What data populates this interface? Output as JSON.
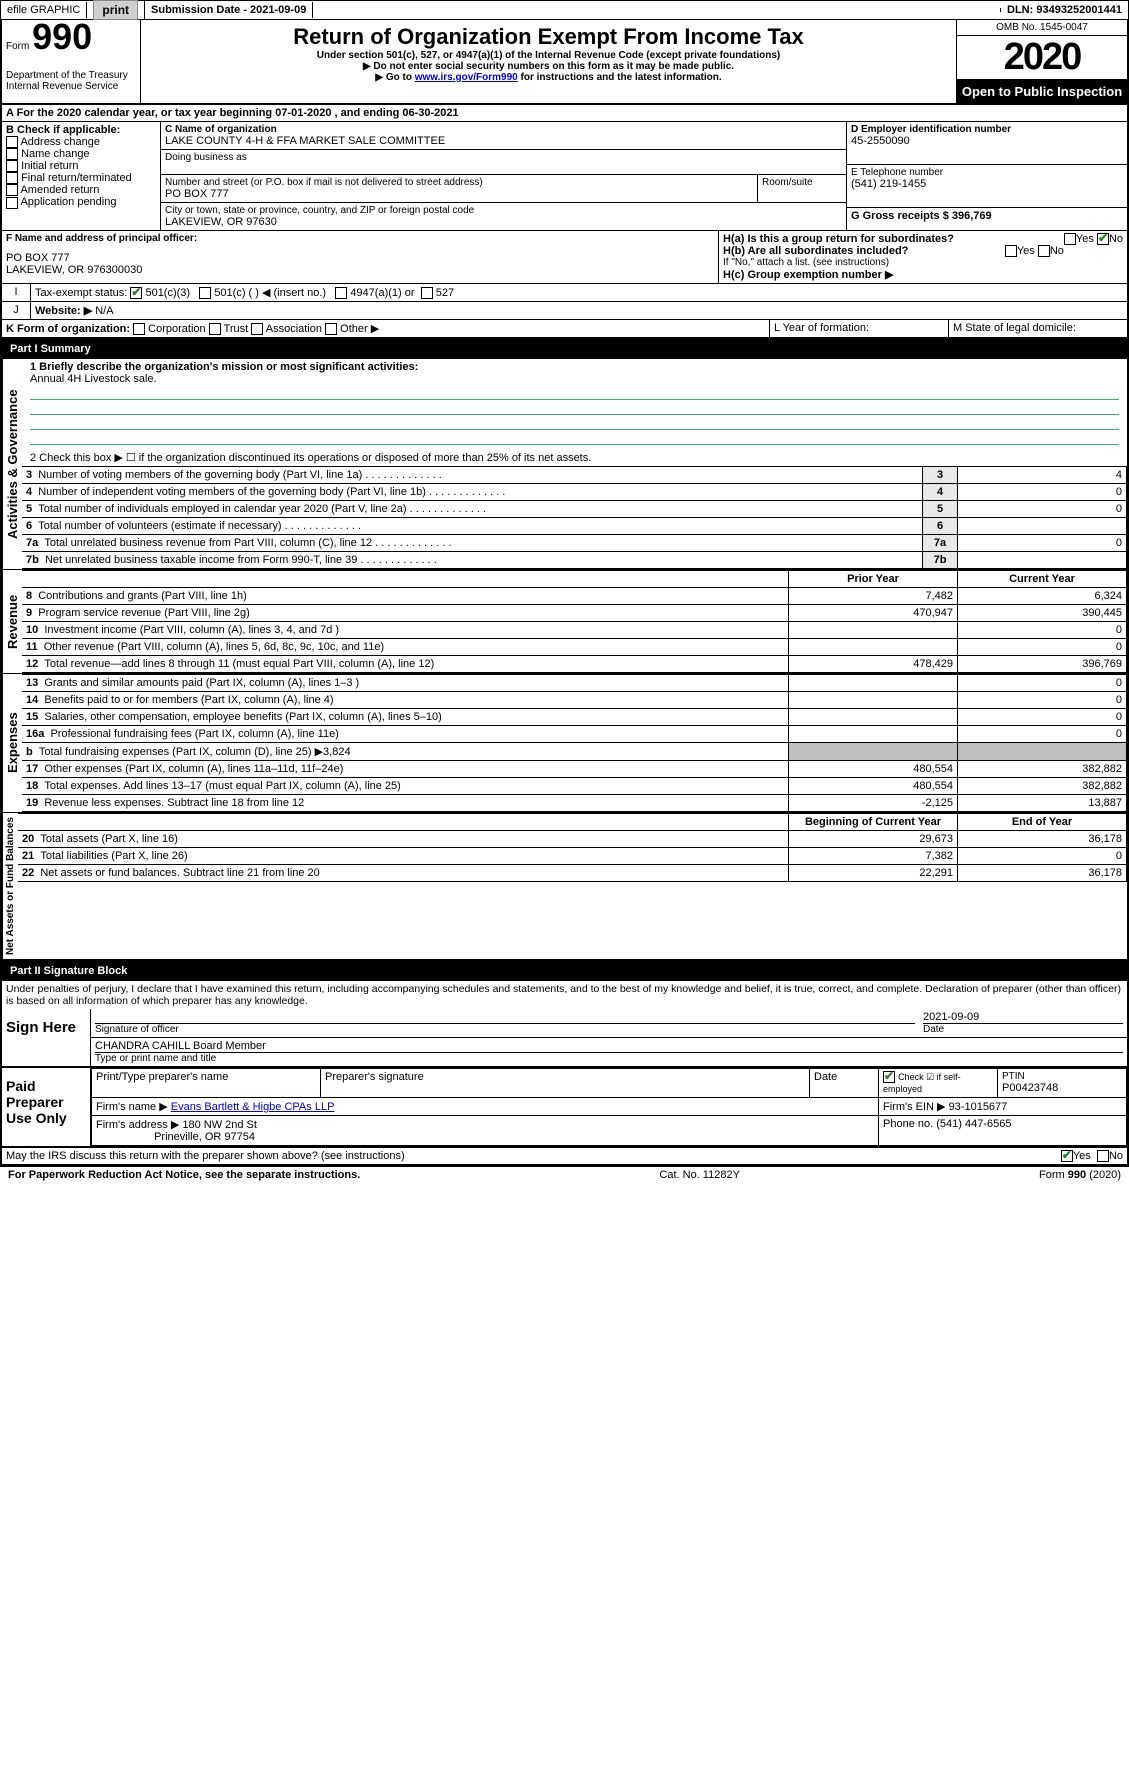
{
  "top": {
    "efile": "efile GRAPHIC",
    "print": "print",
    "sub_label": "Submission Date - 2021-09-09",
    "dln": "DLN: 93493252001441"
  },
  "header": {
    "form_label": "Form",
    "form_number": "990",
    "dept": "Department of the Treasury",
    "irs": "Internal Revenue Service",
    "title": "Return of Organization Exempt From Income Tax",
    "subtitle": "Under section 501(c), 527, or 4947(a)(1) of the Internal Revenue Code (except private foundations)",
    "note1": "▶ Do not enter social security numbers on this form as it may be made public.",
    "note2_pre": "▶ Go to ",
    "note2_link": "www.irs.gov/Form990",
    "note2_post": " for instructions and the latest information.",
    "omb": "OMB No. 1545-0047",
    "year": "2020",
    "open": "Open to Public Inspection"
  },
  "sectionA": {
    "a_line": "A For the 2020 calendar year, or tax year beginning 07-01-2020  , and ending 06-30-2021",
    "b_label": "B Check if applicable:",
    "b_opts": [
      "Address change",
      "Name change",
      "Initial return",
      "Final return/terminated",
      "Amended return",
      "Application pending"
    ],
    "c_label": "C Name of organization",
    "c_name": "LAKE COUNTY 4-H & FFA MARKET SALE COMMITTEE",
    "dba_label": "Doing business as",
    "addr_label": "Number and street (or P.O. box if mail is not delivered to street address)",
    "addr": "PO BOX 777",
    "room_label": "Room/suite",
    "city_label": "City or town, state or province, country, and ZIP or foreign postal code",
    "city": "LAKEVIEW, OR  97630",
    "d_label": "D Employer identification number",
    "d_ein": "45-2550090",
    "e_label": "E Telephone number",
    "e_phone": "(541) 219-1455",
    "g_label": "G Gross receipts $ 396,769",
    "f_label": "F Name and address of principal officer:",
    "f_addr1": "PO BOX 777",
    "f_addr2": "LAKEVIEW, OR  976300030",
    "ha_label": "H(a)  Is this a group return for subordinates?",
    "hb_label": "H(b)  Are all subordinates included?",
    "h_note": "If \"No,\" attach a list. (see instructions)",
    "hc_label": "H(c)  Group exemption number ▶",
    "yes": "Yes",
    "no": "No",
    "i_label": "Tax-exempt status:",
    "i_501c3": "501(c)(3)",
    "i_501c": "501(c) (   ) ◀ (insert no.)",
    "i_4947": "4947(a)(1) or",
    "i_527": "527",
    "j_label": "Website: ▶",
    "j_val": "N/A",
    "k_label": "K Form of organization:",
    "k_opts": [
      "Corporation",
      "Trust",
      "Association",
      "Other ▶"
    ],
    "l_label": "L Year of formation:",
    "m_label": "M State of legal domicile:"
  },
  "part1": {
    "header": "Part I      Summary",
    "q1": "1  Briefly describe the organization's mission or most significant activities:",
    "q1_val": "Annual 4H Livestock sale.",
    "q2": "2   Check this box ▶ ☐  if the organization discontinued its operations or disposed of more than 25% of its net assets.",
    "rows_gov": [
      {
        "n": "3",
        "t": "Number of voting members of the governing body (Part VI, line 1a)",
        "v": "4"
      },
      {
        "n": "4",
        "t": "Number of independent voting members of the governing body (Part VI, line 1b)",
        "v": "0"
      },
      {
        "n": "5",
        "t": "Total number of individuals employed in calendar year 2020 (Part V, line 2a)",
        "v": "0"
      },
      {
        "n": "6",
        "t": "Total number of volunteers (estimate if necessary)",
        "v": ""
      },
      {
        "n": "7a",
        "t": "Total unrelated business revenue from Part VIII, column (C), line 12",
        "v": "0"
      },
      {
        "n": "7b",
        "t": "Net unrelated business taxable income from Form 990-T, line 39",
        "v": ""
      }
    ],
    "col_prior": "Prior Year",
    "col_curr": "Current Year",
    "rows_rev": [
      {
        "n": "8",
        "t": "Contributions and grants (Part VIII, line 1h)",
        "p": "7,482",
        "c": "6,324"
      },
      {
        "n": "9",
        "t": "Program service revenue (Part VIII, line 2g)",
        "p": "470,947",
        "c": "390,445"
      },
      {
        "n": "10",
        "t": "Investment income (Part VIII, column (A), lines 3, 4, and 7d )",
        "p": "",
        "c": "0"
      },
      {
        "n": "11",
        "t": "Other revenue (Part VIII, column (A), lines 5, 6d, 8c, 9c, 10c, and 11e)",
        "p": "",
        "c": "0"
      },
      {
        "n": "12",
        "t": "Total revenue—add lines 8 through 11 (must equal Part VIII, column (A), line 12)",
        "p": "478,429",
        "c": "396,769"
      }
    ],
    "rows_exp": [
      {
        "n": "13",
        "t": "Grants and similar amounts paid (Part IX, column (A), lines 1–3 )",
        "p": "",
        "c": "0"
      },
      {
        "n": "14",
        "t": "Benefits paid to or for members (Part IX, column (A), line 4)",
        "p": "",
        "c": "0"
      },
      {
        "n": "15",
        "t": "Salaries, other compensation, employee benefits (Part IX, column (A), lines 5–10)",
        "p": "",
        "c": "0"
      },
      {
        "n": "16a",
        "t": "Professional fundraising fees (Part IX, column (A), line 11e)",
        "p": "",
        "c": "0"
      },
      {
        "n": "b",
        "t": "Total fundraising expenses (Part IX, column (D), line 25) ▶3,824",
        "p": "gray",
        "c": "gray"
      },
      {
        "n": "17",
        "t": "Other expenses (Part IX, column (A), lines 11a–11d, 11f–24e)",
        "p": "480,554",
        "c": "382,882"
      },
      {
        "n": "18",
        "t": "Total expenses. Add lines 13–17 (must equal Part IX, column (A), line 25)",
        "p": "480,554",
        "c": "382,882"
      },
      {
        "n": "19",
        "t": "Revenue less expenses. Subtract line 18 from line 12",
        "p": "-2,125",
        "c": "13,887"
      }
    ],
    "col_begin": "Beginning of Current Year",
    "col_end": "End of Year",
    "rows_net": [
      {
        "n": "20",
        "t": "Total assets (Part X, line 16)",
        "p": "29,673",
        "c": "36,178"
      },
      {
        "n": "21",
        "t": "Total liabilities (Part X, line 26)",
        "p": "7,382",
        "c": "0"
      },
      {
        "n": "22",
        "t": "Net assets or fund balances. Subtract line 21 from line 20",
        "p": "22,291",
        "c": "36,178"
      }
    ],
    "vert_gov": "Activities & Governance",
    "vert_rev": "Revenue",
    "vert_exp": "Expenses",
    "vert_net": "Net Assets or Fund Balances"
  },
  "part2": {
    "header": "Part II     Signature Block",
    "decl": "Under penalties of perjury, I declare that I have examined this return, including accompanying schedules and statements, and to the best of my knowledge and belief, it is true, correct, and complete. Declaration of preparer (other than officer) is based on all information of which preparer has any knowledge.",
    "sign_here": "Sign Here",
    "sig_officer": "Signature of officer",
    "sig_date": "2021-09-09",
    "date_lbl": "Date",
    "name_title": "CHANDRA CAHILL Board Member",
    "name_title_lbl": "Type or print name and title",
    "paid": "Paid Preparer Use Only",
    "prep_name_lbl": "Print/Type preparer's name",
    "prep_sig_lbl": "Preparer's signature",
    "check_self": "Check ☑ if self-employed",
    "ptin_lbl": "PTIN",
    "ptin": "P00423748",
    "firm_name_lbl": "Firm's name   ▶",
    "firm_name": "Evans Bartlett & Higbe CPAs LLP",
    "firm_ein_lbl": "Firm's EIN ▶",
    "firm_ein": "93-1015677",
    "firm_addr_lbl": "Firm's address ▶",
    "firm_addr1": "180 NW 2nd St",
    "firm_addr2": "Prineville, OR  97754",
    "phone_lbl": "Phone no.",
    "phone": "(541) 447-6565",
    "discuss": "May the IRS discuss this return with the preparer shown above? (see instructions)"
  },
  "footer": {
    "left": "For Paperwork Reduction Act Notice, see the separate instructions.",
    "mid": "Cat. No. 11282Y",
    "right": "Form 990 (2020)"
  }
}
